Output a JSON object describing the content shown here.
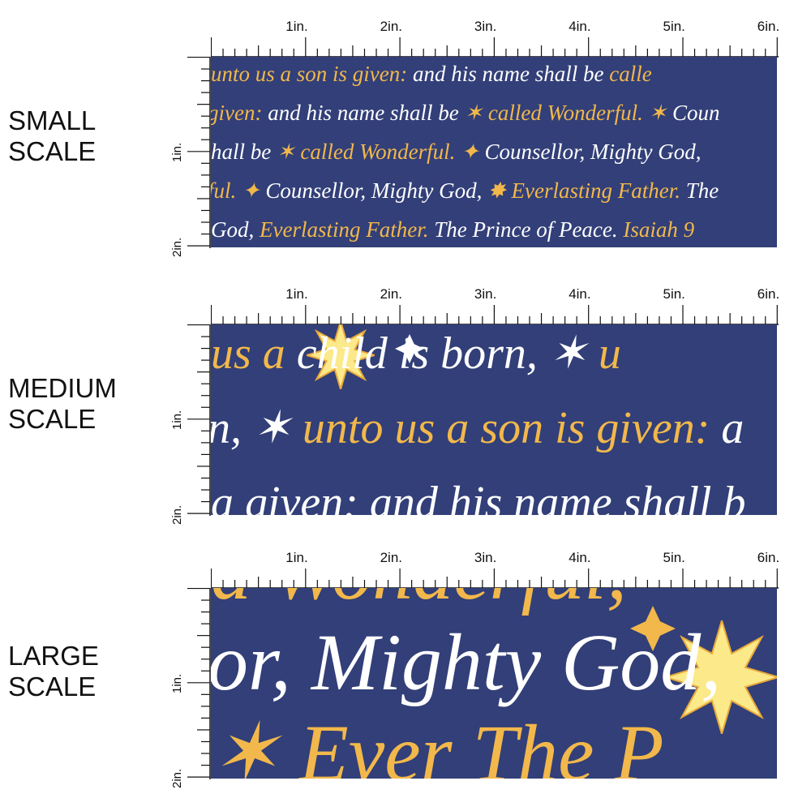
{
  "labels": {
    "small": [
      "SMALL",
      "SCALE"
    ],
    "medium": [
      "MEDIUM",
      "SCALE"
    ],
    "large": [
      "LARGE",
      "SCALE"
    ]
  },
  "ruler": {
    "top": [
      "1in.",
      "2in.",
      "3in.",
      "4in.",
      "5in.",
      "6in."
    ],
    "side": [
      "1in.",
      "2in."
    ]
  },
  "colors": {
    "navy": "#323f78",
    "gold": "#f2b84b",
    "white": "#ffffff",
    "star": "#fbe98a"
  },
  "small": {
    "lines": [
      [
        {
          "t": "unto us a son is given:",
          "c": "g"
        },
        {
          "t": " and his name shall be ",
          "c": "w"
        },
        {
          "t": "calle",
          "c": "g"
        }
      ],
      [
        {
          "t": "given:",
          "c": "g"
        },
        {
          "t": "   and his name shall be ",
          "c": "w"
        },
        {
          "t": "✶ called Wonderful. ✶ ",
          "c": "g"
        },
        {
          "t": "Coun",
          "c": "w"
        }
      ],
      [
        {
          "t": "hall be ",
          "c": "w"
        },
        {
          "t": "✶ called Wonderful. ✦ ",
          "c": "g"
        },
        {
          "t": "Counsellor, Mighty God, ",
          "c": "w"
        }
      ],
      [
        {
          "t": "ful. ✦ ",
          "c": "g"
        },
        {
          "t": "Counsellor, Mighty God, ",
          "c": "w"
        },
        {
          "t": "✸ Everlasting Father. ",
          "c": "g"
        },
        {
          "t": "The",
          "c": "w"
        }
      ],
      [
        {
          "t": "God,        ",
          "c": "w"
        },
        {
          "t": "Everlasting Father. ",
          "c": "g"
        },
        {
          "t": "The Prince of Peace. ",
          "c": "w"
        },
        {
          "t": "Isaiah 9",
          "c": "g"
        }
      ]
    ]
  },
  "medium": {
    "lines": [
      [
        {
          "t": "us a",
          "c": "g"
        },
        {
          "t": "        child is born, ✶ ",
          "c": "w"
        },
        {
          "t": "u",
          "c": "g"
        }
      ],
      [
        {
          "t": "n, ✶ ",
          "c": "w"
        },
        {
          "t": "unto us a son is given: ",
          "c": "g"
        },
        {
          "t": "a",
          "c": "w"
        }
      ],
      [
        {
          "t": "a given:  and his name shall b",
          "c": "w"
        }
      ]
    ]
  },
  "large": {
    "lines": [
      [
        {
          "t": "d Wonderful,",
          "c": "g"
        }
      ],
      [
        {
          "t": "or, Mighty God,",
          "c": "w"
        }
      ],
      [
        {
          "t": "  ✶    Ever    The P",
          "c": "g"
        }
      ]
    ]
  }
}
